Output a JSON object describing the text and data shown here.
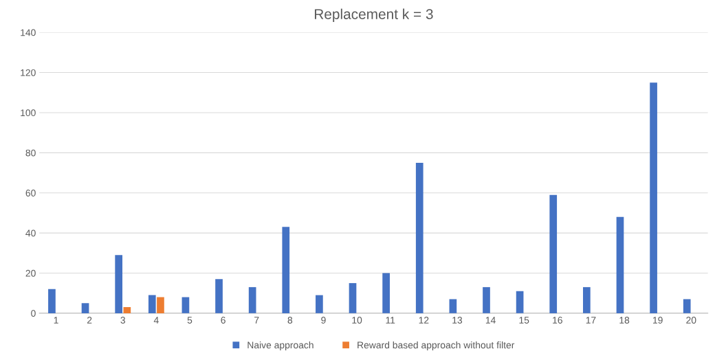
{
  "chart_data": {
    "type": "bar",
    "title": "Replacement k = 3",
    "categories": [
      "1",
      "2",
      "3",
      "4",
      "5",
      "6",
      "7",
      "8",
      "9",
      "10",
      "11",
      "12",
      "13",
      "14",
      "15",
      "16",
      "17",
      "18",
      "19",
      "20"
    ],
    "series": [
      {
        "name": "Naive approach",
        "color": "#4472c4",
        "values": [
          12,
          5,
          29,
          9,
          8,
          17,
          13,
          43,
          9,
          15,
          20,
          75,
          7,
          13,
          11,
          59,
          13,
          48,
          115,
          7
        ]
      },
      {
        "name": "Reward based approach without filter",
        "color": "#ed7d31",
        "values": [
          0,
          0,
          3,
          8,
          0,
          0,
          0,
          0,
          0,
          0,
          0,
          0,
          0,
          0,
          0,
          0,
          0,
          0,
          0,
          0
        ]
      }
    ],
    "ylim": [
      0,
      140
    ],
    "yticks": [
      0,
      20,
      40,
      60,
      80,
      100,
      120,
      140
    ],
    "grid": "y",
    "legend": "bottom"
  }
}
